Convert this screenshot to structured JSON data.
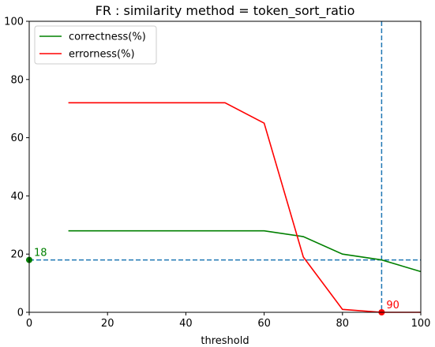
{
  "chart_data": {
    "type": "line",
    "title": "FR : similarity method = token_sort_ratio",
    "xlabel": "threshold",
    "ylabel": "",
    "xlim": [
      0,
      100
    ],
    "ylim": [
      0,
      100
    ],
    "xticks": [
      0,
      20,
      40,
      60,
      80,
      100
    ],
    "yticks": [
      0,
      20,
      40,
      60,
      80,
      100
    ],
    "grid": false,
    "legend_position": "top-left",
    "series": [
      {
        "name": "correctness(%)",
        "color": "#008000",
        "x": [
          10,
          20,
          30,
          40,
          50,
          60,
          70,
          80,
          90,
          100
        ],
        "y": [
          28,
          28,
          28,
          28,
          28,
          28,
          26,
          20,
          18,
          14
        ]
      },
      {
        "name": "errorness(%)",
        "color": "#ff0000",
        "x": [
          10,
          20,
          30,
          40,
          50,
          60,
          70,
          80,
          90,
          100
        ],
        "y": [
          72,
          72,
          72,
          72,
          72,
          65,
          19,
          1,
          0,
          0
        ]
      }
    ],
    "reference_lines": {
      "color": "#1f77b4",
      "vertical_x": 90,
      "horizontal_y": 18
    },
    "annotations": [
      {
        "text": "18",
        "x": 0,
        "y": 18,
        "color": "#008000"
      },
      {
        "text": "90",
        "x": 90,
        "y": 0,
        "color": "#ff0000"
      }
    ]
  }
}
